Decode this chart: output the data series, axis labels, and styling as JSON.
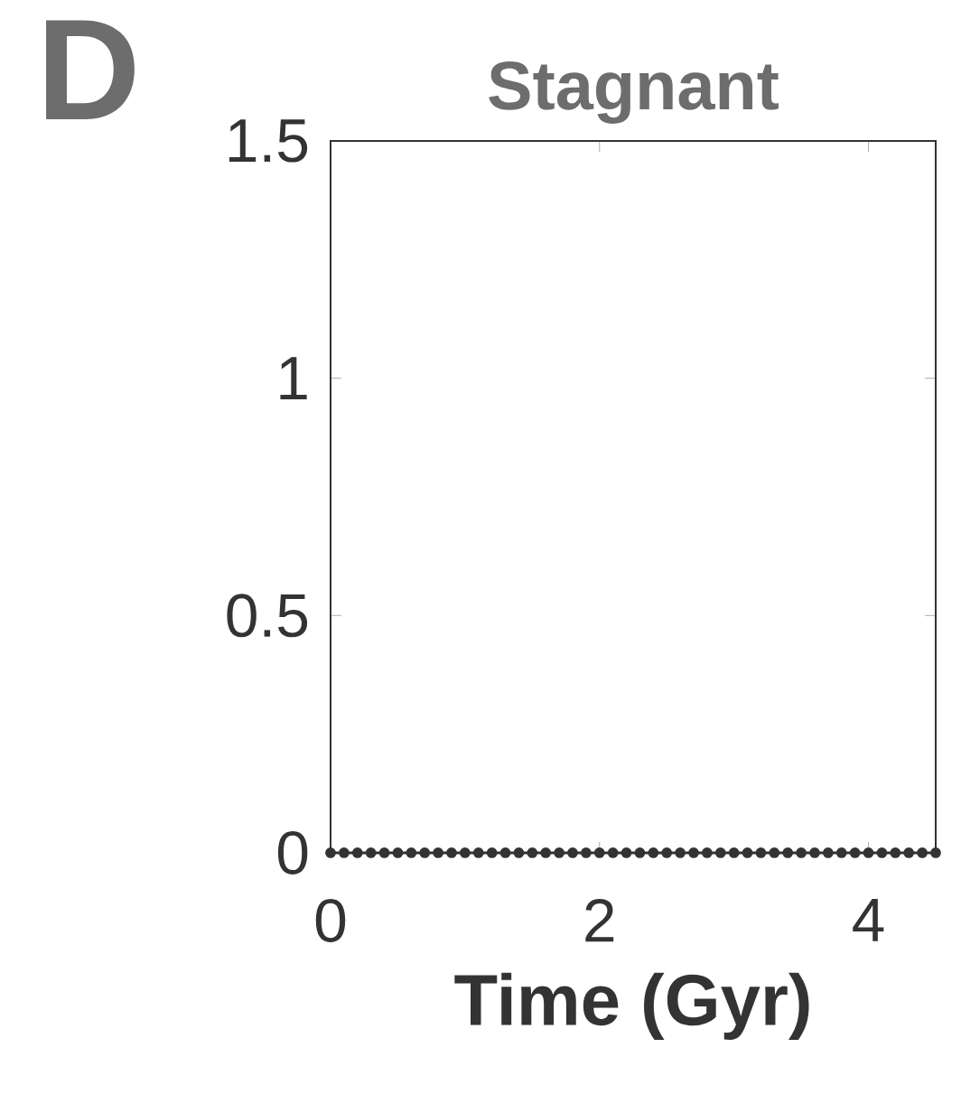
{
  "chart_data": {
    "type": "line",
    "title": "Stagnant",
    "xlabel": "Time (Gyr)",
    "annotations": [
      "D"
    ],
    "x": [
      0,
      0.1,
      0.2,
      0.3,
      0.4,
      0.5,
      0.6,
      0.7,
      0.8,
      0.9,
      1,
      1.1,
      1.2,
      1.3,
      1.4,
      1.5,
      1.6,
      1.7,
      1.8,
      1.9,
      2,
      2.1,
      2.2,
      2.3,
      2.4,
      2.5,
      2.6,
      2.7,
      2.8,
      2.9,
      3,
      3.1,
      3.2,
      3.3,
      3.4,
      3.5,
      3.6,
      3.7,
      3.8,
      3.9,
      4,
      4.1,
      4.2,
      4.3,
      4.4,
      4.5
    ],
    "series": [
      {
        "color": "#333333",
        "values": [
          0,
          0,
          0,
          0,
          0,
          0,
          0,
          0,
          0,
          0,
          0,
          0,
          0,
          0,
          0,
          0,
          0,
          0,
          0,
          0,
          0,
          0,
          0,
          0,
          0,
          0,
          0,
          0,
          0,
          0,
          0,
          0,
          0,
          0,
          0,
          0,
          0,
          0,
          0,
          0,
          0,
          0,
          0,
          0,
          0,
          0
        ]
      }
    ],
    "xlim": [
      0,
      4.5
    ],
    "ylim": [
      0,
      1.5
    ],
    "xticks": [
      0,
      2,
      4
    ],
    "yticks": [
      0,
      0.5,
      1,
      1.5
    ],
    "grid": false,
    "marker": "circle",
    "line_style": "solid"
  }
}
